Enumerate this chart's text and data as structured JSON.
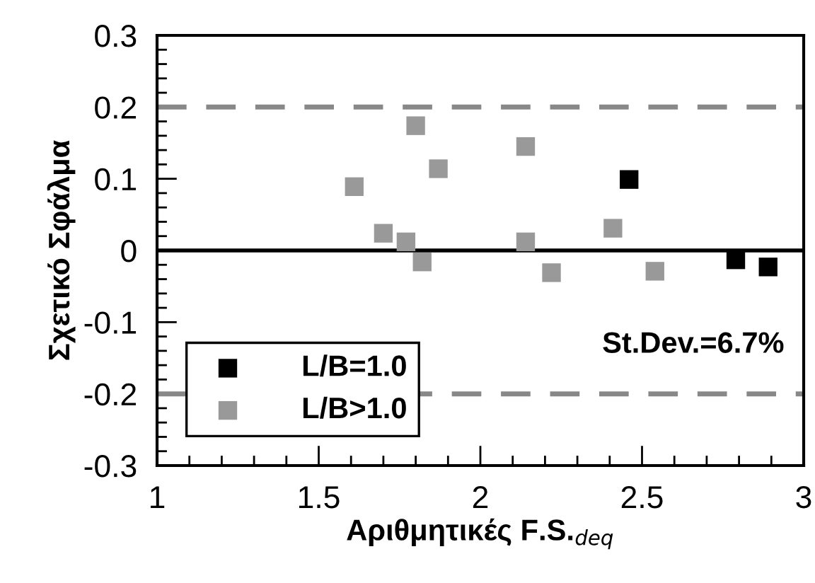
{
  "chart_data": {
    "type": "scatter",
    "xlabel": "Αριθμητικές F.S.$_{deq}$",
    "ylabel": "Σχετικό Σφάλμα",
    "xlim": [
      1,
      3
    ],
    "xticks": [
      1,
      1.5,
      2,
      2.5,
      3
    ],
    "ylim": [
      -0.3,
      0.3
    ],
    "yticks": [
      -0.3,
      -0.2,
      -0.1,
      0,
      0.1,
      0.2,
      0.3
    ],
    "marker": "square",
    "legend": "bottom left",
    "grid": false,
    "series": [
      {
        "name": "L/B=1.0",
        "color": "#000000",
        "x": [
          2.46,
          2.79,
          2.89
        ],
        "values": [
          0.099,
          -0.013,
          -0.023
        ]
      },
      {
        "name": "L/B>1.0",
        "color": "#999999",
        "x": [
          1.61,
          1.7,
          1.77,
          1.8,
          1.82,
          1.87,
          2.14,
          2.14,
          2.22,
          2.41,
          2.54
        ],
        "values": [
          0.089,
          0.024,
          0.012,
          0.174,
          -0.016,
          0.114,
          0.145,
          0.012,
          -0.031,
          0.031,
          -0.029
        ]
      }
    ],
    "ref_lines": [
      {
        "axis": "y",
        "value": 0.2,
        "color": "#888888",
        "line_style": "dashed"
      },
      {
        "axis": "y",
        "value": 0,
        "color": "#000000",
        "line_style": "solid"
      },
      {
        "axis": "y",
        "value": -0.2,
        "color": "#888888",
        "line_style": "dashed"
      }
    ],
    "annotations": [
      "St.Dev.=6.7%"
    ]
  }
}
